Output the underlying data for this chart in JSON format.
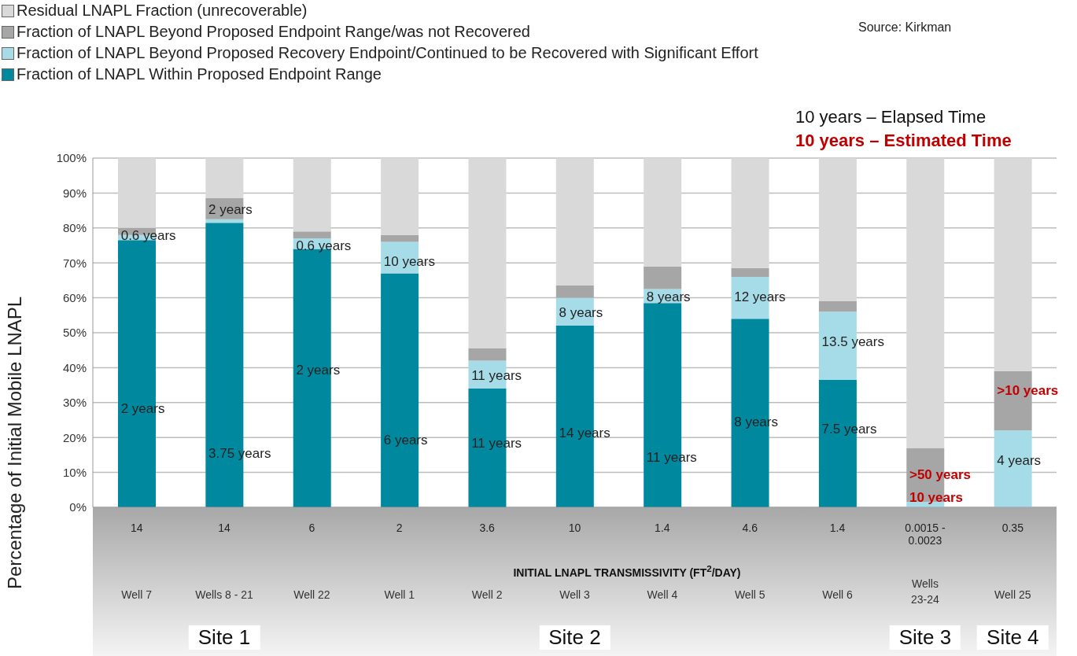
{
  "chart_data": {
    "type": "bar",
    "stacked": true,
    "ylabel": "Percentage of Initial Mobile  LNAPL",
    "categories": [
      "Well 7",
      "Wells 8 - 21",
      "Well 22",
      "Well 1",
      "Well 2",
      "Well 3",
      "Well 4",
      "Well 5",
      "Well 6",
      "Wells 23-24",
      "Well 25"
    ],
    "series": [
      {
        "name": "Fraction of LNAPL Within Proposed Endpoint Range",
        "color": "#00889e",
        "values": [
          76.5,
          81.5,
          74,
          67,
          34,
          52,
          58.5,
          54,
          36.5,
          0,
          0
        ]
      },
      {
        "name": "Fraction of LNAPL Beyond Proposed Recovery  Endpoint/Continued to be Recovered with Significant Effort",
        "color": "#a6dce8",
        "values": [
          1.5,
          1,
          3,
          9,
          8,
          8,
          4,
          12,
          19.5,
          1.5,
          22
        ]
      },
      {
        "name": "Fraction of LNAPL Beyond Proposed Endpoint Range/was not Recovered",
        "color": "#a6a6a6",
        "values": [
          2,
          6,
          2,
          2,
          3.5,
          3.5,
          6.5,
          2.5,
          3,
          15.5,
          17
        ]
      },
      {
        "name": "Residual LNAPL Fraction (unrecoverable)",
        "color": "#d9d9d9",
        "values": [
          20,
          11.5,
          21,
          22,
          54.5,
          36.5,
          31,
          31.5,
          41,
          83,
          61
        ]
      }
    ],
    "ylim": [
      0,
      100
    ],
    "yticks": [
      {
        "value": 0,
        "label": "0%"
      },
      {
        "value": 10,
        "label": "10%"
      },
      {
        "value": 20,
        "label": "20%"
      },
      {
        "value": 30,
        "label": "30%"
      },
      {
        "value": 40,
        "label": "40%"
      },
      {
        "value": 50,
        "label": "50%"
      },
      {
        "value": 60,
        "label": "60%"
      },
      {
        "value": 70,
        "label": "70%"
      },
      {
        "value": 80,
        "label": "80%"
      },
      {
        "value": 90,
        "label": "90%"
      },
      {
        "value": 100,
        "label": "100%"
      }
    ],
    "grid": "y",
    "legend": "top left",
    "annotations": [
      "Source: Kirkman",
      "10 years – Elapsed Time",
      "10 years – Estimated Time",
      "INITIAL LNAPL TRANSMISSIVITY (FT$^{2}$/DAY)",
      "Site 1",
      "Site 2",
      "Site 3",
      "Site 4",
      "14",
      "14",
      "6",
      "2",
      "3.6",
      "10",
      "1.4",
      "4.6",
      "1.4",
      "0.0015 - 0.0023",
      "0.35",
      "2 years",
      "0.6 years",
      "3.75 years",
      "2 years",
      "2 years",
      "0.6 years",
      "6 years",
      "10 years",
      "11 years",
      "11 years",
      "14 years",
      "8 years",
      "11 years",
      "8 years",
      "8 years",
      "12 years",
      "7.5 years",
      "13.5 years",
      ">50 years",
      "10 years",
      "4 years",
      ">10 years"
    ]
  }
}
